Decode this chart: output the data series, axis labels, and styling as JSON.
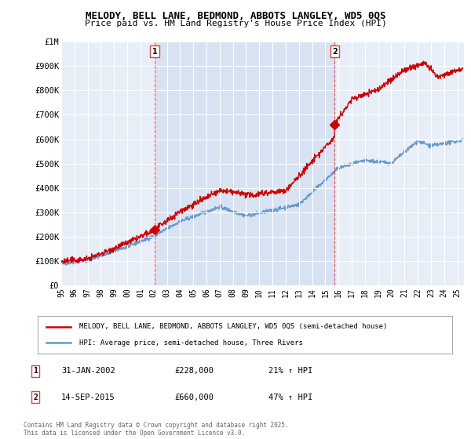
{
  "title": "MELODY, BELL LANE, BEDMOND, ABBOTS LANGLEY, WD5 0QS",
  "subtitle": "Price paid vs. HM Land Registry's House Price Index (HPI)",
  "ylabel_ticks": [
    "£0",
    "£100K",
    "£200K",
    "£300K",
    "£400K",
    "£500K",
    "£600K",
    "£700K",
    "£800K",
    "£900K",
    "£1M"
  ],
  "ytick_vals": [
    0,
    100000,
    200000,
    300000,
    400000,
    500000,
    600000,
    700000,
    800000,
    900000,
    1000000
  ],
  "ylim": [
    0,
    1000000
  ],
  "xlim_start": 1995.0,
  "xlim_end": 2025.5,
  "marker1_x": 2002.08,
  "marker1_y": 228000,
  "marker1_label": "1",
  "marker2_x": 2015.71,
  "marker2_y": 660000,
  "marker2_label": "2",
  "line1_color": "#cc0000",
  "line2_color": "#6699cc",
  "shade_color": "#ddeeff",
  "vline_color": "#dd4444",
  "legend_line1": "MELODY, BELL LANE, BEDMOND, ABBOTS LANGLEY, WD5 0QS (semi-detached house)",
  "legend_line2": "HPI: Average price, semi-detached house, Three Rivers",
  "annotation1_date": "31-JAN-2002",
  "annotation1_price": "£228,000",
  "annotation1_hpi": "21% ↑ HPI",
  "annotation2_date": "14-SEP-2015",
  "annotation2_price": "£660,000",
  "annotation2_hpi": "47% ↑ HPI",
  "footnote": "Contains HM Land Registry data © Crown copyright and database right 2025.\nThis data is licensed under the Open Government Licence v3.0.",
  "bg_color": "#ffffff",
  "plot_bg_color": "#e8eef8",
  "shade_between_color": "#d0dff0",
  "grid_color": "#ffffff"
}
